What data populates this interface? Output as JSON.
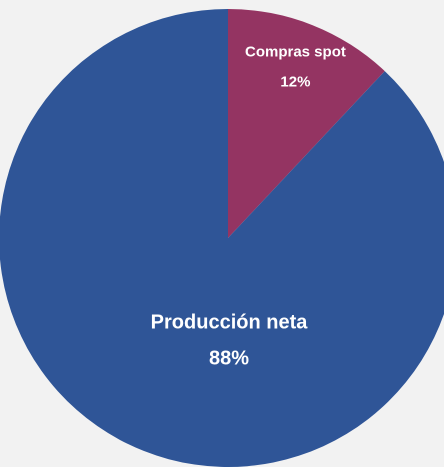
{
  "chart_data": {
    "type": "pie",
    "categories": [
      "Compras spot",
      "Producción neta"
    ],
    "values": [
      12,
      88
    ],
    "value_labels": [
      "12%",
      "88%"
    ],
    "colors": [
      "#943462",
      "#2f5597"
    ]
  }
}
